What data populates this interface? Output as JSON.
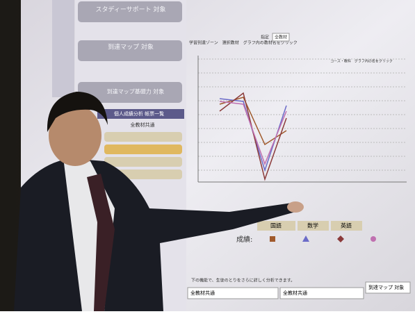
{
  "screen": {
    "menu": [
      "スタディーサポート 対象",
      "到達マップ 対象",
      "到達マップ基礎力 対象",
      "個人成績分析 帳票一覧",
      "全教材共通"
    ],
    "chart_header": "学習到達ゾーン　選択教材　グラフ内の教材名をクリック",
    "chart_note": "コース・教科　グラフ内の名をクリック",
    "filter_label": "指定",
    "filter_value": "全教材",
    "legend_label": "成績:",
    "subjects": [
      "国語",
      "数学",
      "英語"
    ],
    "footer_note": "下の機能で、生徒のとりをさらに詳しく分析できます。",
    "footer_items": [
      "全教材共通",
      "全教材共通",
      "到達マップ 対象"
    ]
  }
}
